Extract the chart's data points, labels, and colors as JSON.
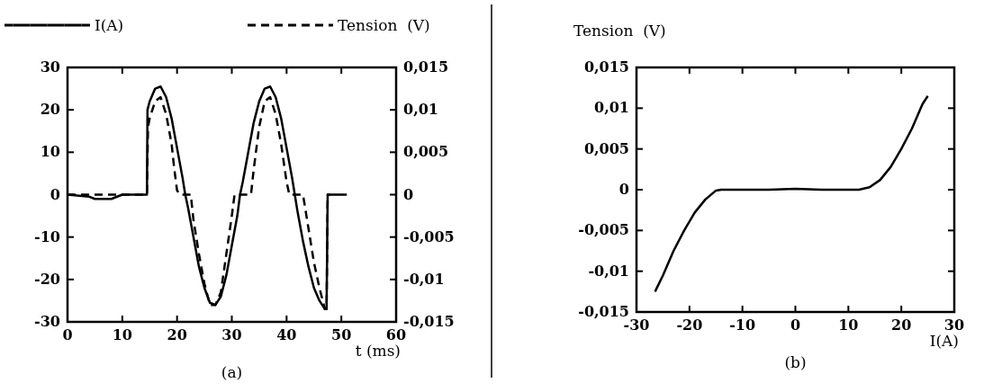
{
  "chart_data": [
    {
      "type": "line",
      "xlabel": "t (ms)",
      "annotations": [
        "(a)"
      ],
      "legend": "top",
      "grid": false,
      "xlim": [
        0,
        60
      ],
      "xticks": [
        0,
        10,
        20,
        30,
        40,
        50,
        60
      ],
      "ylim": [
        -30,
        30
      ],
      "yticks": [
        -30,
        -20,
        -10,
        0,
        10,
        20,
        30
      ],
      "y2lim": [
        -0.015,
        0.015
      ],
      "y2ticks": [
        {
          "value": -0.015,
          "label": "-0,015"
        },
        {
          "value": -0.01,
          "label": "-0,01"
        },
        {
          "value": -0.005,
          "label": "-0,005"
        },
        0,
        {
          "value": 0.005,
          "label": "0,005"
        },
        {
          "value": 0.01,
          "label": "0,01"
        },
        {
          "value": 0.015,
          "label": "0,015"
        }
      ],
      "series": [
        {
          "name": "I(A)",
          "color": "#000000",
          "line_style": "solid",
          "x": [
            0,
            4,
            5,
            8,
            10,
            14.5,
            14.6,
            15,
            16,
            17,
            18,
            19,
            20,
            21,
            21.5,
            22,
            23,
            24,
            25,
            26,
            27,
            28,
            29,
            30,
            31,
            31.5,
            32,
            33,
            34,
            35,
            36,
            37,
            38,
            39,
            40,
            41,
            41.5,
            42,
            43,
            44,
            45,
            46,
            47,
            47.3,
            47.5,
            51
          ],
          "values": [
            0,
            -0.5,
            -1,
            -1,
            0,
            0,
            20,
            22,
            25,
            25.5,
            23,
            18,
            11,
            4,
            0,
            -3,
            -10,
            -17,
            -22,
            -25.5,
            -26,
            -24,
            -19,
            -12,
            -5,
            0,
            3,
            10,
            17,
            22,
            25,
            25.5,
            23,
            18,
            11,
            4,
            0,
            -4,
            -11,
            -17,
            -22,
            -25,
            -27,
            -27,
            0,
            0
          ]
        },
        {
          "name": "Tension  (V)",
          "color": "#000000",
          "line_style": "dashed",
          "axis": "y2",
          "x": [
            0,
            14.5,
            14.7,
            15,
            16,
            17,
            18,
            19,
            19.5,
            20,
            20.5,
            22.5,
            23,
            24,
            25,
            26,
            27,
            28,
            29,
            30,
            30.5,
            33.5,
            34,
            35,
            36,
            37,
            38,
            39,
            40,
            40.5,
            43,
            44,
            45,
            46,
            47,
            47.3,
            47.5,
            48
          ],
          "values": [
            0,
            0,
            0.008,
            0.009,
            0.011,
            0.0115,
            0.0095,
            0.006,
            0.003,
            0.0005,
            0,
            0,
            -0.003,
            -0.007,
            -0.0105,
            -0.013,
            -0.013,
            -0.0115,
            -0.007,
            -0.0025,
            0,
            0,
            0.003,
            0.008,
            0.011,
            0.0115,
            0.0095,
            0.006,
            0.0015,
            0,
            0,
            -0.004,
            -0.008,
            -0.011,
            -0.0135,
            -0.0135,
            0,
            0
          ]
        }
      ]
    },
    {
      "type": "line",
      "xlabel": "I(A)",
      "ylabel": "Tension  (V)",
      "annotations": [
        "(b)"
      ],
      "grid": false,
      "xlim": [
        -30,
        30
      ],
      "xticks": [
        -30,
        -20,
        -10,
        0,
        10,
        20,
        30
      ],
      "ylim": [
        -0.015,
        0.015
      ],
      "yticks": [
        {
          "value": -0.015,
          "label": "-0,015"
        },
        {
          "value": -0.01,
          "label": "-0,01"
        },
        {
          "value": -0.005,
          "label": "-0,005"
        },
        0,
        {
          "value": 0.005,
          "label": "0,005"
        },
        {
          "value": 0.01,
          "label": "0,01"
        },
        {
          "value": 0.015,
          "label": "0,015"
        }
      ],
      "series": [
        {
          "color": "#000000",
          "line_style": "solid",
          "x": [
            -26.5,
            -25,
            -23,
            -21,
            -19,
            -17,
            -15,
            -14,
            -5,
            0,
            5,
            12,
            14,
            16,
            18,
            20,
            22,
            24,
            25
          ],
          "values": [
            -0.0125,
            -0.0105,
            -0.0075,
            -0.005,
            -0.0028,
            -0.0012,
            -0.0001,
            0,
            0,
            0.0001,
            0,
            0,
            0.0003,
            0.0012,
            0.0028,
            0.005,
            0.0075,
            0.0105,
            0.0115
          ]
        }
      ]
    }
  ]
}
